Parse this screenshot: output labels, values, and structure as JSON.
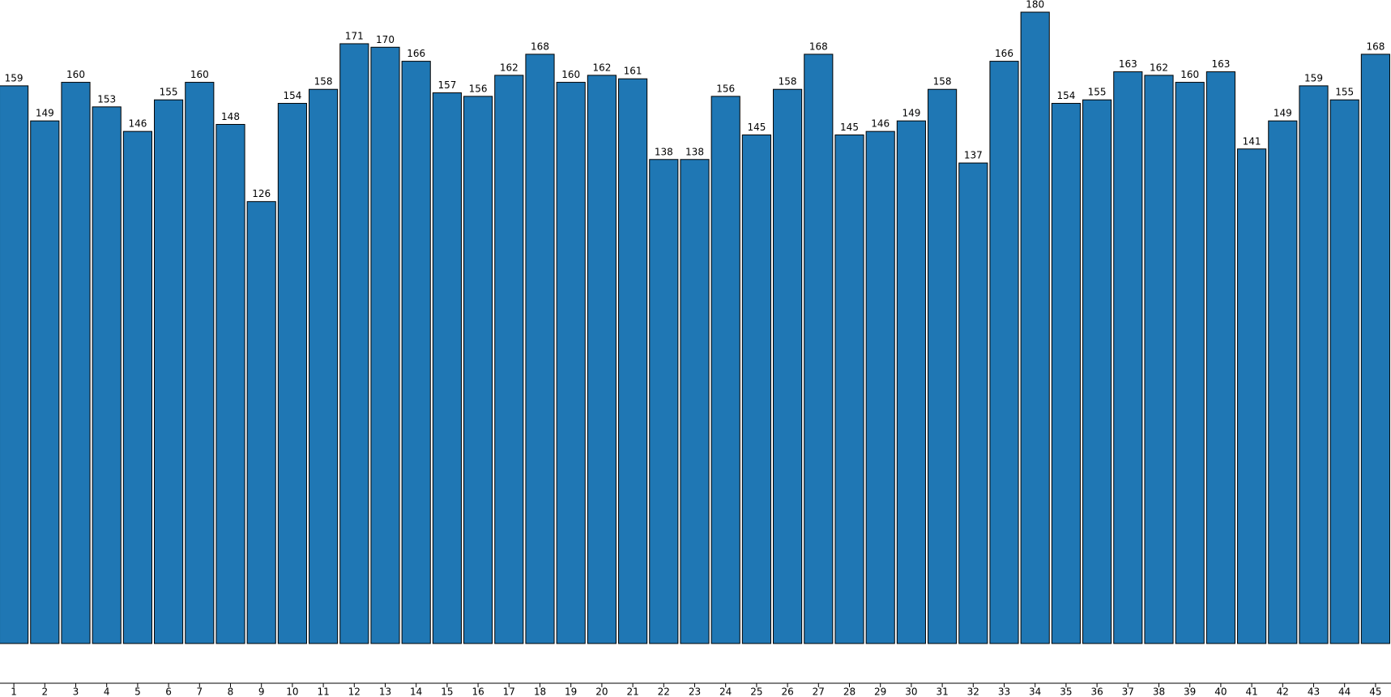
{
  "chart_data": {
    "type": "bar",
    "categories": [
      "1",
      "2",
      "3",
      "4",
      "5",
      "6",
      "7",
      "8",
      "9",
      "10",
      "11",
      "12",
      "13",
      "14",
      "15",
      "16",
      "17",
      "18",
      "19",
      "20",
      "21",
      "22",
      "23",
      "24",
      "25",
      "26",
      "27",
      "28",
      "29",
      "30",
      "31",
      "32",
      "33",
      "34",
      "35",
      "36",
      "37",
      "38",
      "39",
      "40",
      "41",
      "42",
      "43",
      "44",
      "45"
    ],
    "values": [
      159,
      149,
      160,
      153,
      146,
      155,
      160,
      148,
      126,
      154,
      158,
      171,
      170,
      166,
      157,
      156,
      162,
      168,
      160,
      162,
      161,
      138,
      138,
      156,
      145,
      158,
      168,
      145,
      146,
      149,
      158,
      137,
      166,
      180,
      154,
      155,
      163,
      162,
      160,
      163,
      141,
      149,
      159,
      155,
      168
    ],
    "color": "#1f77b4",
    "ylim": [
      0,
      180
    ],
    "grid": false
  }
}
